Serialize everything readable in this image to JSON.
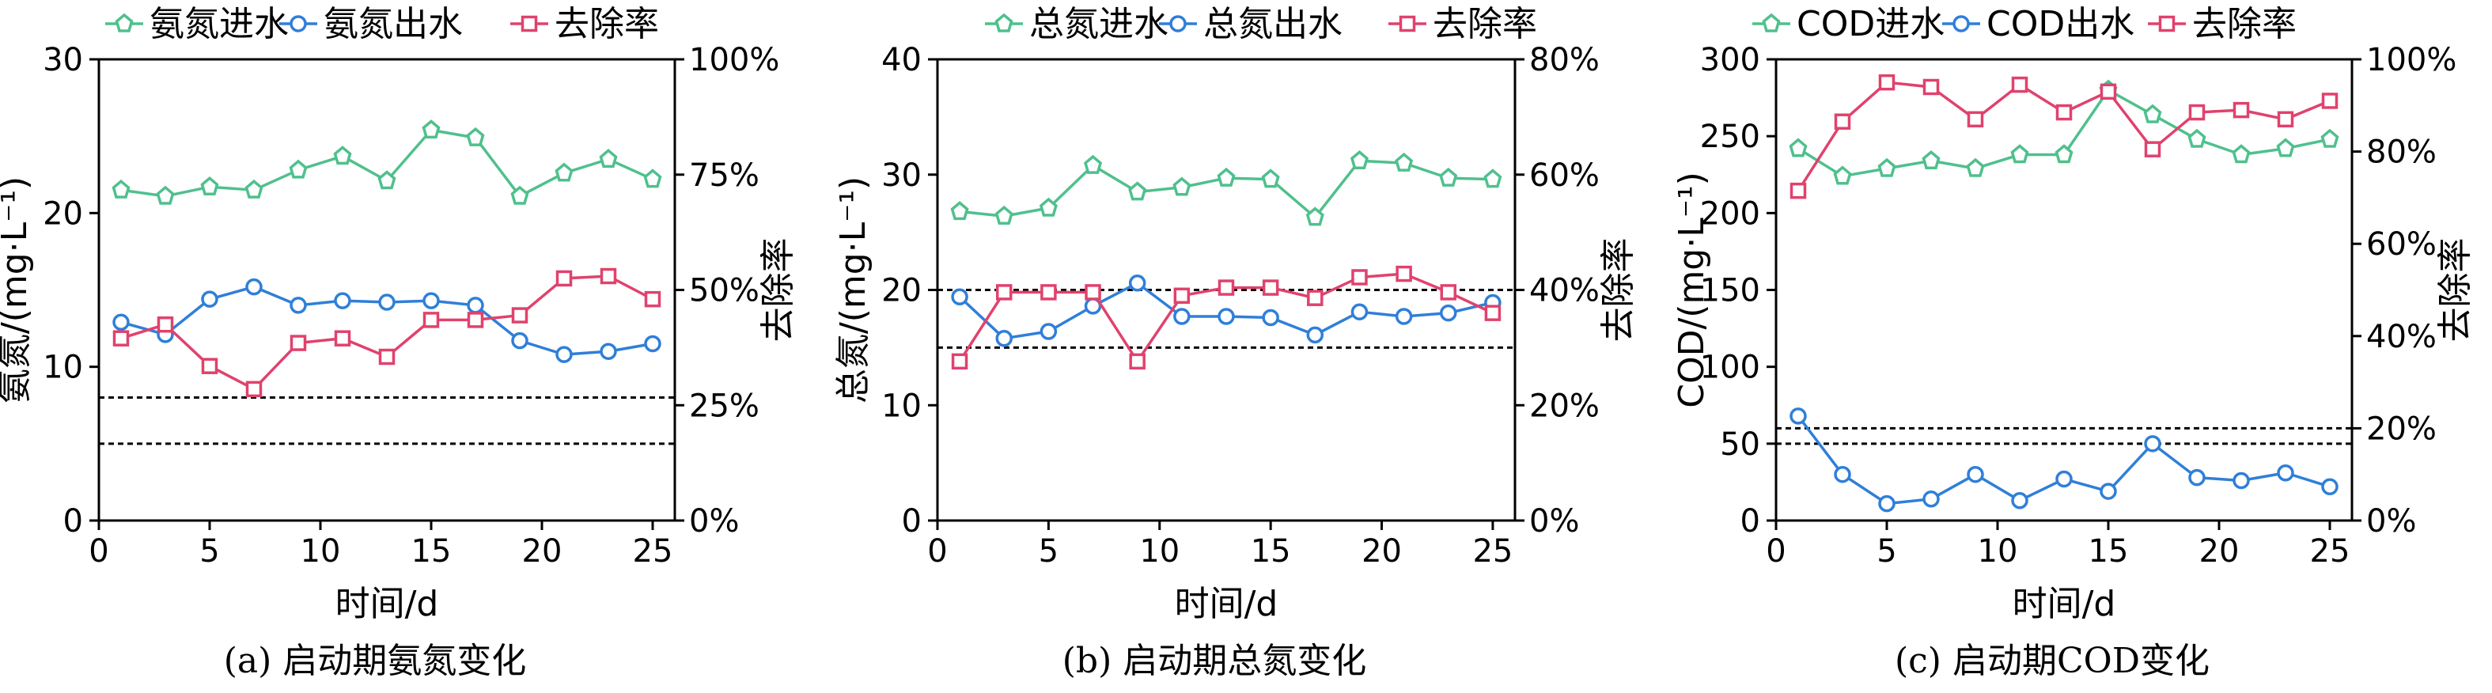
{
  "figure": {
    "colors": {
      "influent": "#4fc08d",
      "effluent": "#2f7fd8",
      "removal": "#e0426d",
      "axis": "#000000"
    }
  },
  "chart_data": [
    {
      "type": "line",
      "caption": "(a) 启动期氨氮变化",
      "xlabel": "时间/d",
      "ylabel": "氨氮/(mg·L⁻¹)",
      "y2label": "去除率",
      "xlim": [
        0,
        26
      ],
      "xticks": [
        0,
        5,
        10,
        15,
        20,
        25
      ],
      "ylim": [
        0,
        30
      ],
      "yticks": [
        0,
        10,
        20,
        30
      ],
      "y2lim": [
        0,
        100
      ],
      "y2ticks": [
        "0%",
        "25%",
        "50%",
        "75%",
        "100%"
      ],
      "legend": {
        "position": "top",
        "labels": [
          "氨氮进水",
          "氨氮出水",
          "去除率"
        ]
      },
      "reference_lines": [
        8,
        5
      ],
      "x": [
        1,
        3,
        5,
        7,
        9,
        11,
        13,
        15,
        17,
        19,
        21,
        23,
        25
      ],
      "series": [
        {
          "name": "氨氮进水",
          "axis": "left",
          "marker": "diamond",
          "values": [
            21.5,
            21.1,
            21.7,
            21.5,
            22.8,
            23.7,
            22.1,
            25.4,
            24.9,
            21.1,
            22.6,
            23.5,
            22.2
          ]
        },
        {
          "name": "氨氮出水",
          "axis": "left",
          "marker": "circle",
          "values": [
            12.9,
            12.1,
            14.4,
            15.2,
            14.0,
            14.3,
            14.2,
            14.3,
            14.0,
            11.7,
            10.8,
            11.0,
            11.5
          ]
        },
        {
          "name": "去除率",
          "axis": "right",
          "marker": "square",
          "values": [
            39.5,
            42.5,
            33.5,
            28.5,
            38.5,
            39.5,
            35.5,
            43.5,
            43.5,
            44.5,
            52.5,
            53.0,
            48.0
          ]
        }
      ]
    },
    {
      "type": "line",
      "caption": "(b) 启动期总氮变化",
      "xlabel": "时间/d",
      "ylabel": "总氮/(mg·L⁻¹)",
      "y2label": "去除率",
      "xlim": [
        0,
        26
      ],
      "xticks": [
        0,
        5,
        10,
        15,
        20,
        25
      ],
      "ylim": [
        0,
        40
      ],
      "yticks": [
        0,
        10,
        20,
        30,
        40
      ],
      "y2lim": [
        0,
        80
      ],
      "y2ticks": [
        "0%",
        "20%",
        "40%",
        "60%",
        "80%"
      ],
      "legend": {
        "position": "top",
        "labels": [
          "总氮进水",
          "总氮出水",
          "去除率"
        ]
      },
      "reference_lines": [
        20,
        15
      ],
      "x": [
        1,
        3,
        5,
        7,
        9,
        11,
        13,
        15,
        17,
        19,
        21,
        23,
        25
      ],
      "series": [
        {
          "name": "总氮进水",
          "axis": "left",
          "marker": "diamond",
          "values": [
            26.8,
            26.4,
            27.1,
            30.8,
            28.5,
            28.9,
            29.7,
            29.6,
            26.3,
            31.2,
            31.0,
            29.7,
            29.6
          ]
        },
        {
          "name": "总氮出水",
          "axis": "left",
          "marker": "circle",
          "values": [
            19.4,
            15.8,
            16.4,
            18.6,
            20.6,
            17.7,
            17.7,
            17.6,
            16.1,
            18.1,
            17.7,
            18.0,
            18.9
          ]
        },
        {
          "name": "去除率",
          "axis": "right",
          "marker": "square",
          "values": [
            27.6,
            39.6,
            39.6,
            39.6,
            27.6,
            39.0,
            40.4,
            40.4,
            38.6,
            42.2,
            42.8,
            39.6,
            36.0
          ]
        }
      ]
    },
    {
      "type": "line",
      "caption": "(c) 启动期COD变化",
      "xlabel": "时间/d",
      "ylabel": "COD/(mg·L⁻¹)",
      "y2label": "去除率",
      "xlim": [
        0,
        26
      ],
      "xticks": [
        0,
        5,
        10,
        15,
        20,
        25
      ],
      "ylim": [
        0,
        300
      ],
      "yticks": [
        0,
        50,
        100,
        150,
        200,
        250,
        300
      ],
      "y2lim": [
        0,
        100
      ],
      "y2ticks": [
        "0%",
        "20%",
        "40%",
        "60%",
        "80%",
        "100%"
      ],
      "legend": {
        "position": "top",
        "labels": [
          "COD进水",
          "COD出水",
          "去除率"
        ]
      },
      "reference_lines": [
        60,
        50
      ],
      "x": [
        1,
        3,
        5,
        7,
        9,
        11,
        13,
        15,
        17,
        19,
        21,
        23,
        25
      ],
      "series": [
        {
          "name": "COD进水",
          "axis": "left",
          "marker": "diamond",
          "values": [
            242,
            224,
            229,
            234,
            229,
            238,
            238,
            280,
            264,
            248,
            238,
            242,
            248
          ]
        },
        {
          "name": "COD出水",
          "axis": "left",
          "marker": "circle",
          "values": [
            68,
            30,
            11,
            14,
            30,
            13,
            27,
            19,
            50,
            28,
            26,
            31,
            22
          ]
        },
        {
          "name": "去除率",
          "axis": "right",
          "marker": "square",
          "values": [
            71.5,
            86.5,
            95.0,
            94.0,
            87.0,
            94.5,
            88.5,
            93.0,
            80.5,
            88.5,
            89.0,
            87.0,
            91.0
          ]
        }
      ]
    }
  ]
}
